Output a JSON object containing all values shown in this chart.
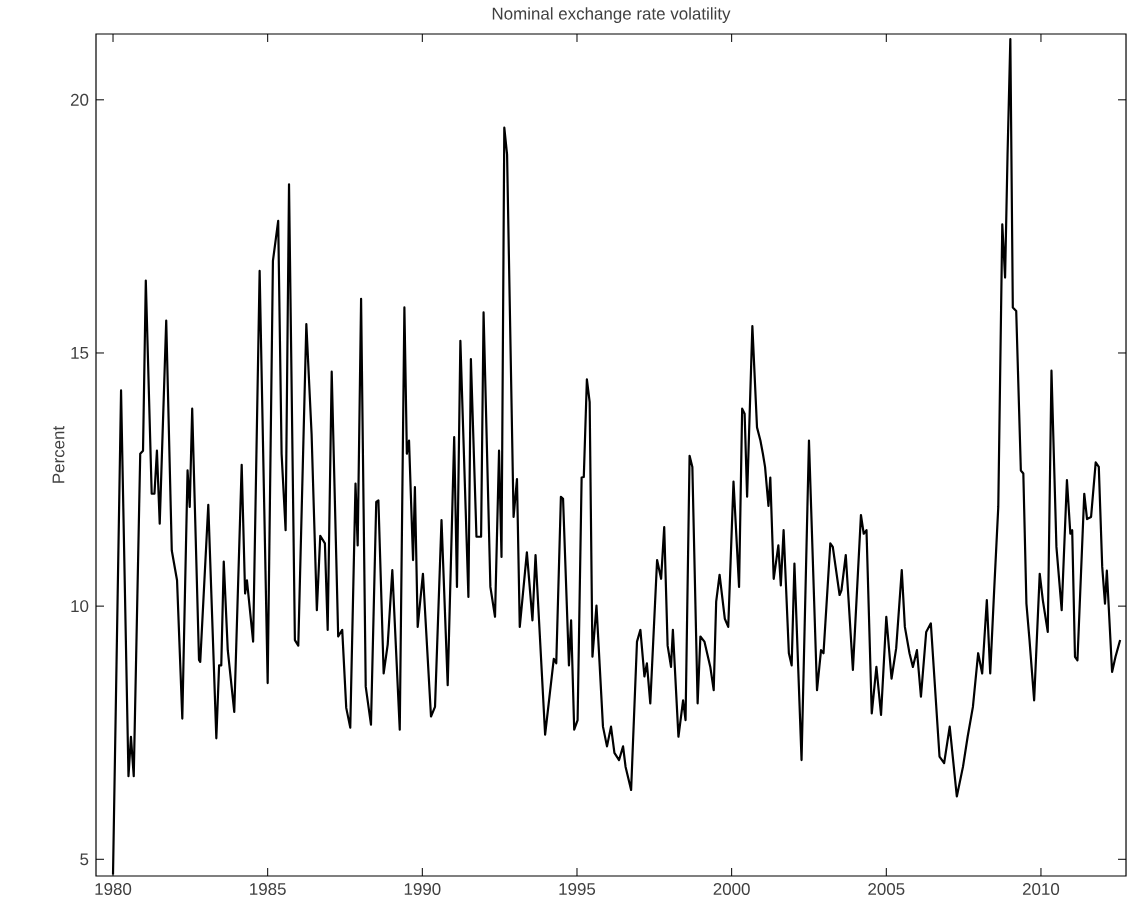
{
  "chart_data": {
    "type": "line",
    "title": "Nominal exchange rate volatility",
    "ylabel": "Percent",
    "xlim": [
      1979.45,
      2012.75
    ],
    "ylim": [
      4.67,
      21.3
    ],
    "xticks": [
      1980,
      1985,
      1990,
      1995,
      2000,
      2005,
      2010
    ],
    "yticks": [
      5,
      10,
      15,
      20
    ],
    "grid": false,
    "marker": "none",
    "line_style": "solid",
    "series": [
      {
        "color": "#000000",
        "x": [
          1980.0,
          1980.26,
          1980.5,
          1980.58,
          1980.67,
          1980.88,
          1980.97,
          1981.06,
          1981.25,
          1981.34,
          1981.42,
          1981.51,
          1981.72,
          1981.9,
          1982.07,
          1982.24,
          1982.41,
          1982.48,
          1982.56,
          1982.78,
          1982.82,
          1983.08,
          1983.34,
          1983.43,
          1983.5,
          1983.58,
          1983.71,
          1983.92,
          1984.16,
          1984.27,
          1984.33,
          1984.53,
          1984.74,
          1985.0,
          1985.17,
          1985.34,
          1985.45,
          1985.58,
          1985.69,
          1985.88,
          1985.99,
          1986.25,
          1986.42,
          1986.59,
          1986.7,
          1986.85,
          1986.94,
          1987.07,
          1987.28,
          1987.41,
          1987.54,
          1987.67,
          1987.84,
          1987.91,
          1988.02,
          1988.17,
          1988.34,
          1988.51,
          1988.58,
          1988.75,
          1988.88,
          1989.03,
          1989.27,
          1989.42,
          1989.5,
          1989.57,
          1989.7,
          1989.76,
          1989.85,
          1990.02,
          1990.28,
          1990.41,
          1990.62,
          1990.82,
          1991.03,
          1991.12,
          1991.23,
          1991.49,
          1991.57,
          1991.75,
          1991.9,
          1991.98,
          1992.2,
          1992.35,
          1992.48,
          1992.56,
          1992.65,
          1992.74,
          1992.95,
          1993.06,
          1993.15,
          1993.38,
          1993.56,
          1993.66,
          1993.97,
          1994.25,
          1994.33,
          1994.48,
          1994.55,
          1994.74,
          1994.81,
          1994.91,
          1995.02,
          1995.15,
          1995.22,
          1995.32,
          1995.41,
          1995.5,
          1995.63,
          1995.84,
          1995.97,
          1996.1,
          1996.21,
          1996.36,
          1996.49,
          1996.57,
          1996.75,
          1996.94,
          1997.05,
          1997.18,
          1997.26,
          1997.37,
          1997.59,
          1997.72,
          1997.82,
          1997.93,
          1998.04,
          1998.1,
          1998.28,
          1998.43,
          1998.51,
          1998.64,
          1998.73,
          1998.9,
          1998.99,
          1999.12,
          1999.31,
          1999.42,
          1999.5,
          1999.61,
          1999.78,
          1999.89,
          2000.06,
          2000.24,
          2000.34,
          2000.42,
          2000.5,
          2000.67,
          2000.82,
          2000.93,
          2001.01,
          2001.08,
          2001.19,
          2001.25,
          2001.36,
          2001.51,
          2001.59,
          2001.68,
          2001.85,
          2001.94,
          2002.03,
          2002.26,
          2002.5,
          2002.76,
          2002.89,
          2002.97,
          2003.19,
          2003.27,
          2003.49,
          2003.55,
          2003.69,
          2003.92,
          2004.18,
          2004.27,
          2004.36,
          2004.53,
          2004.68,
          2004.83,
          2005.0,
          2005.17,
          2005.32,
          2005.5,
          2005.6,
          2005.75,
          2005.86,
          2005.99,
          2006.12,
          2006.29,
          2006.44,
          2006.72,
          2006.87,
          2007.05,
          2007.28,
          2007.48,
          2007.63,
          2007.8,
          2007.97,
          2008.1,
          2008.25,
          2008.36,
          2008.49,
          2008.62,
          2008.75,
          2008.84,
          2008.92,
          2009.01,
          2009.09,
          2009.2,
          2009.35,
          2009.43,
          2009.53,
          2009.63,
          2009.78,
          2009.96,
          2010.06,
          2010.22,
          2010.34,
          2010.5,
          2010.67,
          2010.84,
          2010.95,
          2011.01,
          2011.1,
          2011.18,
          2011.4,
          2011.49,
          2011.62,
          2011.77,
          2011.87,
          2011.98,
          2012.07,
          2012.13,
          2012.3,
          2012.41,
          2012.56
        ],
        "values": [
          4.7,
          14.26,
          6.64,
          7.42,
          6.64,
          13.01,
          13.07,
          16.43,
          12.22,
          12.22,
          13.07,
          11.63,
          15.64,
          11.1,
          10.51,
          7.78,
          12.68,
          11.96,
          13.9,
          8.94,
          8.9,
          12.0,
          7.39,
          8.83,
          8.83,
          10.88,
          9.13,
          7.91,
          12.79,
          10.25,
          10.51,
          9.3,
          16.62,
          8.48,
          16.82,
          17.61,
          13.01,
          11.5,
          18.33,
          9.33,
          9.22,
          15.57,
          13.4,
          9.92,
          11.39,
          11.24,
          9.53,
          14.63,
          9.4,
          9.53,
          7.99,
          7.6,
          12.42,
          11.2,
          16.07,
          8.41,
          7.66,
          12.06,
          12.09,
          8.67,
          9.24,
          10.71,
          7.56,
          15.9,
          13.01,
          13.27,
          10.91,
          12.35,
          9.59,
          10.64,
          7.82,
          8.01,
          11.7,
          8.44,
          13.34,
          10.38,
          15.24,
          10.18,
          14.88,
          11.37,
          11.37,
          15.8,
          10.38,
          9.79,
          13.07,
          10.97,
          19.45,
          18.92,
          11.76,
          12.51,
          9.59,
          11.06,
          9.72,
          11.01,
          7.46,
          8.96,
          8.87,
          12.16,
          12.12,
          8.83,
          9.72,
          7.56,
          7.75,
          12.54,
          12.55,
          14.48,
          14.03,
          9.0,
          10.01,
          7.62,
          7.23,
          7.62,
          7.1,
          6.96,
          7.23,
          6.83,
          6.37,
          9.3,
          9.53,
          8.61,
          8.87,
          8.08,
          10.91,
          10.54,
          11.56,
          9.22,
          8.8,
          9.53,
          7.42,
          8.14,
          7.75,
          12.97,
          12.75,
          8.08,
          9.4,
          9.3,
          8.8,
          8.34,
          10.09,
          10.62,
          9.75,
          9.59,
          12.46,
          10.38,
          13.9,
          13.8,
          12.16,
          15.53,
          13.53,
          13.27,
          13.01,
          12.75,
          11.98,
          12.54,
          10.54,
          11.2,
          10.41,
          11.5,
          9.07,
          8.83,
          10.84,
          6.96,
          13.27,
          8.34,
          9.13,
          9.07,
          11.24,
          11.17,
          10.22,
          10.31,
          11.01,
          8.74,
          11.8,
          11.43,
          11.5,
          7.88,
          8.8,
          7.85,
          9.79,
          8.57,
          9.17,
          10.71,
          9.59,
          9.07,
          8.8,
          9.13,
          8.21,
          9.49,
          9.66,
          7.03,
          6.9,
          7.62,
          6.24,
          6.83,
          7.42,
          8.01,
          9.07,
          8.67,
          10.12,
          8.67,
          10.35,
          11.96,
          17.54,
          16.49,
          18.92,
          21.2,
          15.9,
          15.83,
          12.68,
          12.62,
          10.05,
          9.33,
          8.14,
          10.64,
          10.12,
          9.49,
          14.65,
          11.17,
          9.92,
          12.49,
          11.43,
          11.5,
          9.0,
          8.93,
          12.22,
          11.72,
          11.76,
          12.84,
          12.75,
          10.78,
          10.05,
          10.7,
          8.7,
          9.0,
          9.33
        ]
      }
    ]
  }
}
